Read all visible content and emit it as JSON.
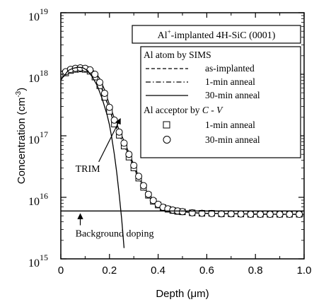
{
  "chart_data": {
    "type": "line",
    "title": "",
    "xlabel": "Depth (μm)",
    "ylabel": "Concentration (cm⁻³)",
    "ylabel_main": "Concentration (cm",
    "ylabel_sup": "-3",
    "ylabel_end": ")",
    "xlim": [
      0,
      1.0
    ],
    "ylim": [
      1000000000000000.0,
      1e+19
    ],
    "yscale": "log",
    "grid": false,
    "x_ticks": [
      {
        "value": 0,
        "label": "0"
      },
      {
        "value": 0.2,
        "label": "0.2"
      },
      {
        "value": 0.4,
        "label": "0.4"
      },
      {
        "value": 0.6,
        "label": "0.6"
      },
      {
        "value": 0.8,
        "label": "0.8"
      },
      {
        "value": 1.0,
        "label": "1.0"
      }
    ],
    "y_ticks": [
      {
        "value": 1000000000000000.0,
        "base": "10",
        "exp": "15"
      },
      {
        "value": 1e+16,
        "base": "10",
        "exp": "16"
      },
      {
        "value": 1e+17,
        "base": "10",
        "exp": "17"
      },
      {
        "value": 1e+18,
        "base": "10",
        "exp": "18"
      },
      {
        "value": 1e+19,
        "base": "10",
        "exp": "19"
      }
    ],
    "sample_box": {
      "line1_pre": "Al",
      "line1_sup": "+",
      "line1_post": "-implanted 4H-SiC (0001)"
    },
    "legend": {
      "position": "top-right",
      "sims_heading": "Al atom by SIMS",
      "cv_heading_pre": "Al acceptor by ",
      "cv_heading_c": "C",
      "cv_heading_dash": " - ",
      "cv_heading_v": "V"
    },
    "series": [
      {
        "name": "as-implanted",
        "style": "dashed",
        "group": "sims",
        "x": [
          0,
          0.02,
          0.04,
          0.06,
          0.08,
          0.1,
          0.12,
          0.14,
          0.16,
          0.18,
          0.2,
          0.22,
          0.24,
          0.26,
          0.28,
          0.3,
          0.32,
          0.34,
          0.36,
          0.38,
          0.4,
          0.42,
          0.44,
          0.46,
          0.48,
          0.5,
          0.55,
          0.6,
          0.7,
          0.8,
          0.9,
          1.0
        ],
        "y": [
          8e+17,
          1.05e+18,
          1.2e+18,
          1.25e+18,
          1.28e+18,
          1.25e+18,
          1.15e+18,
          9.5e+17,
          7e+17,
          4.5e+17,
          2.6e+17,
          1.6e+17,
          1.05e+17,
          7e+16,
          4.6e+16,
          3e+16,
          2e+16,
          1.4e+16,
          1.05e+16,
          8500000000000000.0,
          7500000000000000.0,
          6800000000000000.0,
          6400000000000000.0,
          6100000000000000.0,
          5900000000000000.0,
          5800000000000000.0,
          5600000000000000.0,
          5500000000000000.0,
          5400000000000000.0,
          5300000000000000.0,
          5300000000000000.0,
          5300000000000000.0
        ]
      },
      {
        "name": "1-min anneal",
        "style": "dashdot",
        "group": "sims",
        "x": [
          0,
          0.02,
          0.04,
          0.06,
          0.08,
          0.1,
          0.12,
          0.14,
          0.16,
          0.18,
          0.2,
          0.22,
          0.24,
          0.26,
          0.28,
          0.3,
          0.32,
          0.34,
          0.36,
          0.38,
          0.4,
          0.42,
          0.44,
          0.46,
          0.48,
          0.5,
          0.55,
          0.6,
          0.7,
          0.8,
          0.9,
          1.0
        ],
        "y": [
          8e+17,
          1.1e+18,
          1.22e+18,
          1.28e+18,
          1.3e+18,
          1.27e+18,
          1.17e+18,
          9.8e+17,
          7.2e+17,
          4.7e+17,
          2.7e+17,
          1.7e+17,
          1.1e+17,
          7.3e+16,
          4.8e+16,
          3.1e+16,
          2.05e+16,
          1.45e+16,
          1.08e+16,
          8700000000000000.0,
          7600000000000000.0,
          6900000000000000.0,
          6500000000000000.0,
          6200000000000000.0,
          6000000000000000.0,
          5850000000000000.0,
          5600000000000000.0,
          5500000000000000.0,
          5400000000000000.0,
          5350000000000000.0,
          5300000000000000.0,
          5300000000000000.0
        ]
      },
      {
        "name": "30-min anneal",
        "style": "solid",
        "group": "sims",
        "x": [
          0,
          0.02,
          0.04,
          0.06,
          0.08,
          0.1,
          0.12,
          0.14,
          0.16,
          0.18,
          0.2,
          0.22,
          0.24,
          0.26,
          0.28,
          0.3,
          0.32,
          0.34,
          0.36,
          0.38,
          0.4,
          0.42,
          0.44,
          0.46,
          0.48,
          0.5,
          0.55,
          0.6,
          0.7,
          0.8,
          0.9,
          1.0
        ],
        "y": [
          1.1e+18,
          1.2e+18,
          1.28e+18,
          1.32e+18,
          1.33e+18,
          1.32e+18,
          1.25e+18,
          1.1e+18,
          8.5e+17,
          5.6e+17,
          3.2e+17,
          1.95e+17,
          1.25e+17,
          8.2e+16,
          5.3e+16,
          3.4e+16,
          2.2e+16,
          1.55e+16,
          1.12e+16,
          8900000000000000.0,
          7700000000000000.0,
          7000000000000000.0,
          6500000000000000.0,
          6200000000000000.0,
          6000000000000000.0,
          5850000000000000.0,
          5600000000000000.0,
          5500000000000000.0,
          5400000000000000.0,
          5350000000000000.0,
          5300000000000000.0,
          5300000000000000.0
        ]
      },
      {
        "name": "1-min anneal",
        "style": "square",
        "group": "cv",
        "x": [
          0.02,
          0.04,
          0.06,
          0.08,
          0.1,
          0.12,
          0.14,
          0.16,
          0.18,
          0.2,
          0.22,
          0.24,
          0.26,
          0.28,
          0.3,
          0.32,
          0.34,
          0.36,
          0.38,
          0.4,
          0.42,
          0.44,
          0.46,
          0.48,
          0.5,
          0.54,
          0.58,
          0.62,
          0.66,
          0.7,
          0.74,
          0.78,
          0.82,
          0.86,
          0.9,
          0.94,
          0.98
        ],
        "y": [
          1.05e+18,
          1.15e+18,
          1.2e+18,
          1.22e+18,
          1.2e+18,
          1.12e+18,
          9e+17,
          6.5e+17,
          4.2e+17,
          2.5e+17,
          1.55e+17,
          1.02e+17,
          6.8e+16,
          4.5e+16,
          3e+16,
          2.05e+16,
          1.45e+16,
          1.08e+16,
          8600000000000000.0,
          7500000000000000.0,
          6800000000000000.0,
          6400000000000000.0,
          6100000000000000.0,
          5900000000000000.0,
          5800000000000000.0,
          5600000000000000.0,
          5500000000000000.0,
          5500000000000000.0,
          5400000000000000.0,
          5400000000000000.0,
          5350000000000000.0,
          5300000000000000.0,
          5300000000000000.0,
          5300000000000000.0,
          5300000000000000.0,
          5300000000000000.0,
          5300000000000000.0
        ]
      },
      {
        "name": "30-min anneal",
        "style": "circle",
        "group": "cv",
        "x": [
          0.02,
          0.04,
          0.06,
          0.08,
          0.1,
          0.12,
          0.14,
          0.16,
          0.18,
          0.2,
          0.22,
          0.24,
          0.26,
          0.28,
          0.3,
          0.32,
          0.34,
          0.36,
          0.38,
          0.4,
          0.42,
          0.44,
          0.46,
          0.48,
          0.5,
          0.54,
          0.58,
          0.62,
          0.66,
          0.7,
          0.74,
          0.78,
          0.82,
          0.86,
          0.9,
          0.94,
          0.98
        ],
        "y": [
          1.1e+18,
          1.2e+18,
          1.25e+18,
          1.27e+18,
          1.25e+18,
          1.18e+18,
          1e+18,
          7.4e+17,
          4.9e+17,
          2.9e+17,
          1.8e+17,
          1.15e+17,
          7.6e+16,
          5e+16,
          3.3e+16,
          2.2e+16,
          1.55e+16,
          1.12e+16,
          8900000000000000.0,
          7700000000000000.0,
          6900000000000000.0,
          6500000000000000.0,
          6200000000000000.0,
          6000000000000000.0,
          5850000000000000.0,
          5600000000000000.0,
          5500000000000000.0,
          5450000000000000.0,
          5400000000000000.0,
          5400000000000000.0,
          5350000000000000.0,
          5300000000000000.0,
          5300000000000000.0,
          5300000000000000.0,
          5300000000000000.0,
          5300000000000000.0,
          5300000000000000.0
        ]
      },
      {
        "name": "TRIM",
        "style": "solid",
        "group": "annotation",
        "x": [
          0.01,
          0.03,
          0.05,
          0.07,
          0.09,
          0.11,
          0.13,
          0.15,
          0.17,
          0.19,
          0.2,
          0.21,
          0.22,
          0.23,
          0.24,
          0.25,
          0.26
        ],
        "y": [
          9e+17,
          1.15e+18,
          1.25e+18,
          1.3e+18,
          1.28e+18,
          1.15e+18,
          9e+17,
          6.5e+17,
          4e+17,
          2.2e+17,
          1.5e+17,
          9e+16,
          5e+16,
          2.5e+16,
          1.1e+16,
          4500000000000000.0,
          1500000000000000.0
        ]
      },
      {
        "name": "Background doping",
        "style": "solid",
        "group": "annotation",
        "x": [
          0,
          1.0
        ],
        "y": [
          6000000000000000.0,
          6000000000000000.0
        ]
      }
    ],
    "annotations": [
      {
        "text": "TRIM",
        "x": 0.06,
        "y": 2.6e+16,
        "arrow_to_x": 0.245,
        "arrow_to_y": 1.9e+17
      },
      {
        "text": "Background doping",
        "x": 0.06,
        "y": 2300000000000000.0,
        "arrow_to_x": 0.08,
        "arrow_to_y": 6000000000000000.0
      }
    ],
    "legend_entries": [
      {
        "label": "as-implanted",
        "marker": "dashed"
      },
      {
        "label": "1-min anneal",
        "marker": "dashdot"
      },
      {
        "label": "30-min anneal",
        "marker": "solid"
      },
      {
        "label": "1-min anneal",
        "marker": "square"
      },
      {
        "label": "30-min anneal",
        "marker": "circle"
      }
    ]
  }
}
